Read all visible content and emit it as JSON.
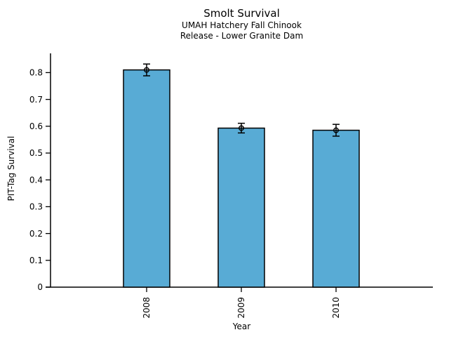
{
  "chart_data": {
    "type": "bar",
    "title": "Smolt Survival",
    "subtitle_lines": [
      "UMAH Hatchery Fall Chinook",
      "Release - Lower Granite Dam"
    ],
    "xlabel": "Year",
    "ylabel": "PIT-Tag Survival",
    "categories": [
      "2008",
      "2009",
      "2010"
    ],
    "values": [
      0.81,
      0.593,
      0.585
    ],
    "errors": [
      0.022,
      0.018,
      0.022
    ],
    "yticks": [
      "0",
      "0.1",
      "0.2",
      "0.3",
      "0.4",
      "0.5",
      "0.6",
      "0.7",
      "0.8"
    ],
    "ylim": [
      0,
      0.872
    ],
    "grid": false,
    "legend_position": "none",
    "bar_color": "#58ABD5",
    "bar_edge_color": "#000000",
    "errorbar_color": "#000000",
    "errorbar_marker": "open-circle",
    "xtick_rotation": 90
  }
}
